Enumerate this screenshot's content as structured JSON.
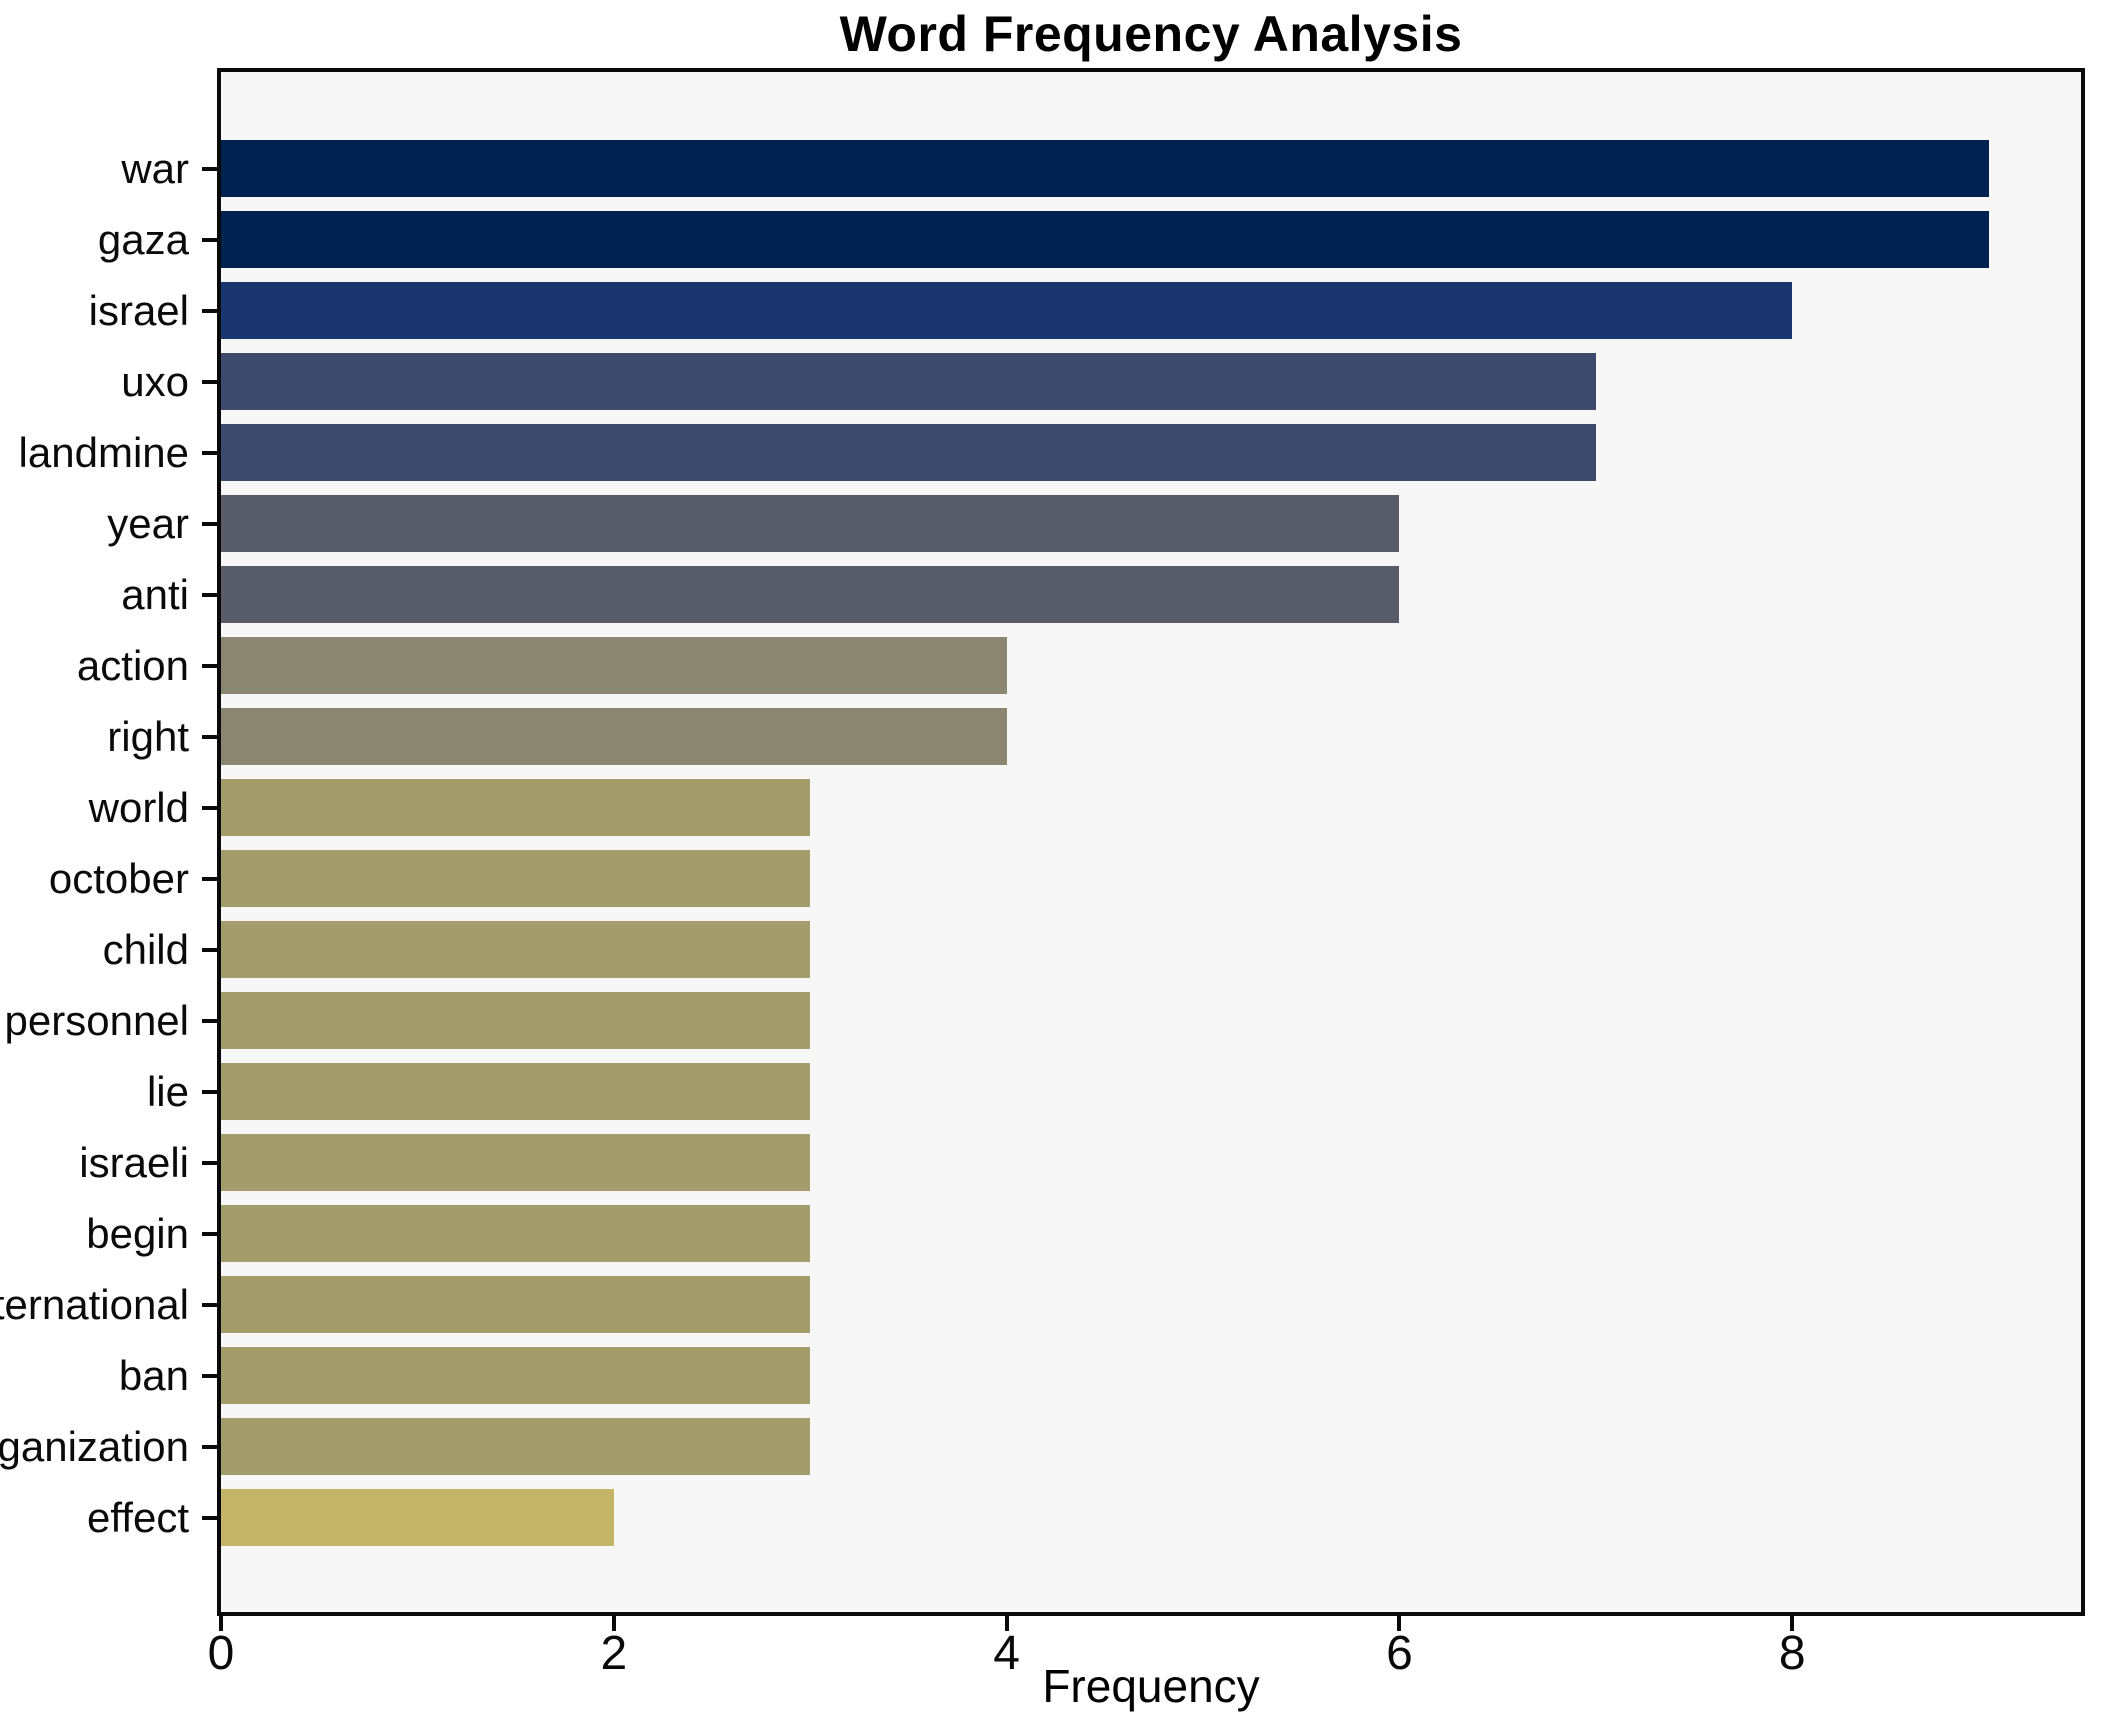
{
  "chart_data": {
    "type": "bar",
    "orientation": "horizontal",
    "title": "Word Frequency Analysis",
    "xlabel": "Frequency",
    "ylabel": "",
    "categories": [
      "war",
      "gaza",
      "israel",
      "uxo",
      "landmine",
      "year",
      "anti",
      "action",
      "right",
      "world",
      "october",
      "child",
      "personnel",
      "lie",
      "israeli",
      "begin",
      "international",
      "ban",
      "organization",
      "effect"
    ],
    "values": [
      9,
      9,
      8,
      7,
      7,
      6,
      6,
      4,
      4,
      3,
      3,
      3,
      3,
      3,
      3,
      3,
      3,
      3,
      3,
      2
    ],
    "bar_colors": [
      "#002250",
      "#002250",
      "#1b366e",
      "#3e4a6c",
      "#3e4a6c",
      "#575c68",
      "#575c68",
      "#8a866f",
      "#8a866f",
      "#a59c6c",
      "#a59c6c",
      "#a59c6c",
      "#a59c6c",
      "#a59c6c",
      "#a59c6c",
      "#a59c6c",
      "#a59c6c",
      "#a59c6c",
      "#a59c6c",
      "#c4b566"
    ],
    "x_ticks": [
      0,
      2,
      4,
      6,
      8
    ],
    "xlim": [
      0,
      9.47
    ],
    "grid": false,
    "legend": "none",
    "plot_background": "#f7f7f8",
    "spine_color": "#0a0a0a",
    "colormap": "cividis"
  }
}
